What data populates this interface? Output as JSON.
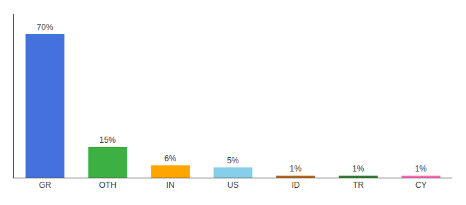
{
  "chart_data": {
    "type": "bar",
    "categories": [
      "GR",
      "OTH",
      "IN",
      "US",
      "ID",
      "TR",
      "CY"
    ],
    "values": [
      70,
      15,
      6,
      5,
      1,
      1,
      1
    ],
    "value_labels": [
      "70%",
      "15%",
      "6%",
      "5%",
      "1%",
      "1%",
      "1%"
    ],
    "data_labels": true,
    "colors": [
      "#4472dd",
      "#3cb043",
      "#ffa500",
      "#87ceeb",
      "#b8651a",
      "#2e7d32",
      "#ff69b4"
    ],
    "ylim": [
      0,
      80
    ],
    "grid": false,
    "tick_labels": "x"
  }
}
